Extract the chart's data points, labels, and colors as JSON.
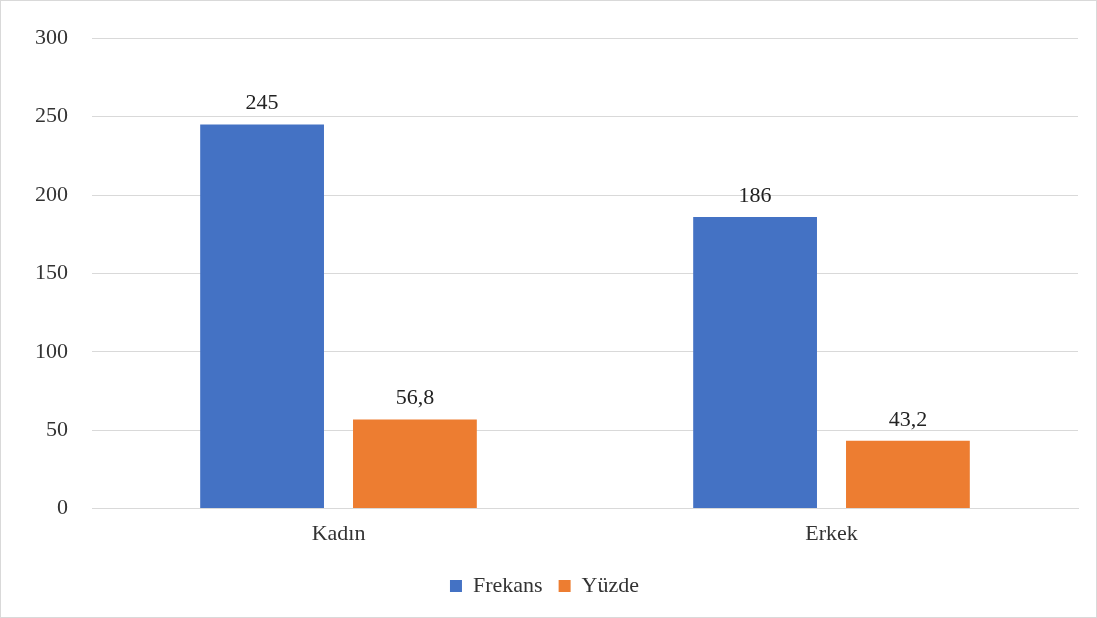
{
  "chart_data": {
    "type": "bar",
    "categories": [
      "Kadın",
      "Erkek"
    ],
    "series": [
      {
        "name": "Frekans",
        "color": "#4472c4",
        "values": [
          245,
          186
        ],
        "value_labels": [
          "245",
          "186"
        ]
      },
      {
        "name": "Yüzde",
        "color": "#ed7d31",
        "values": [
          56.8,
          43.2
        ],
        "value_labels": [
          "56,8",
          "43,2"
        ]
      }
    ],
    "ylim": [
      0,
      300
    ],
    "yticks": [
      0,
      50,
      100,
      150,
      200,
      250,
      300
    ],
    "grid": "y",
    "legend": "bottom"
  }
}
